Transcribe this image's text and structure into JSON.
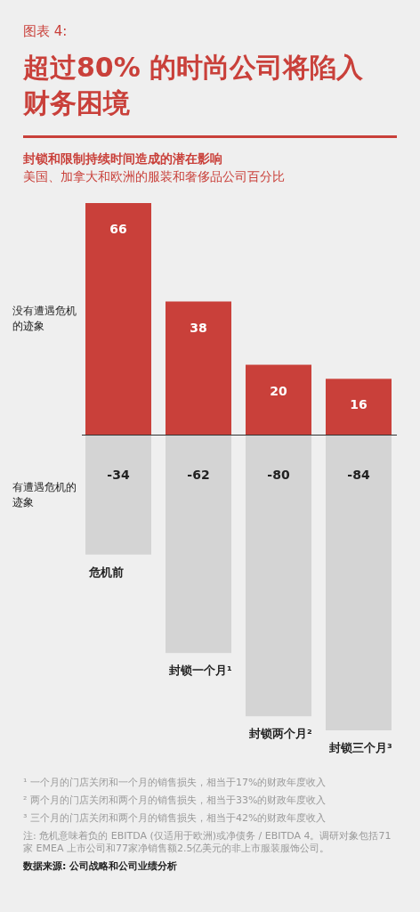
{
  "chart_data": {
    "type": "bar",
    "stacked": true,
    "data_labels": true,
    "title": "超过80% 的时尚公司将陷入财务困境",
    "subtitle": "封锁和限制持续时间造成的潜在影响",
    "ylabel": "美国、加拿大和欧洲的服装和奢侈品公司百分比",
    "categories": [
      "危机前",
      "封锁一个月¹",
      "封锁两个月²",
      "封锁三个月³"
    ],
    "series": [
      {
        "name": "没有遭遇危机的迹象",
        "color": "#c9403a",
        "values": [
          66,
          38,
          20,
          16
        ]
      },
      {
        "name": "有遭遇危机的迹象",
        "color": "#d4d4d4",
        "values": [
          -34,
          -62,
          -80,
          -84
        ]
      }
    ],
    "annotations": [
      "图表 4:",
      "¹ 一个月的门店关闭和一个月的销售损失，相当于17%的财政年度收入",
      "² 两个月的门店关闭和两个月的销售损失，相当于33%的财政年度收入",
      "³ 三个月的门店关闭和两个月的销售损失，相当于42%的财政年度收入",
      "注: 危机意味着负的 EBITDA (仅适用于欧洲)或净债务 / EBITDA 4。调研对象包括71家 EMEA 上市公司和77家净销售额2.5亿美元的非上市服装服饰公司。",
      "数据来源: 公司战略和公司业绩分析"
    ]
  }
}
